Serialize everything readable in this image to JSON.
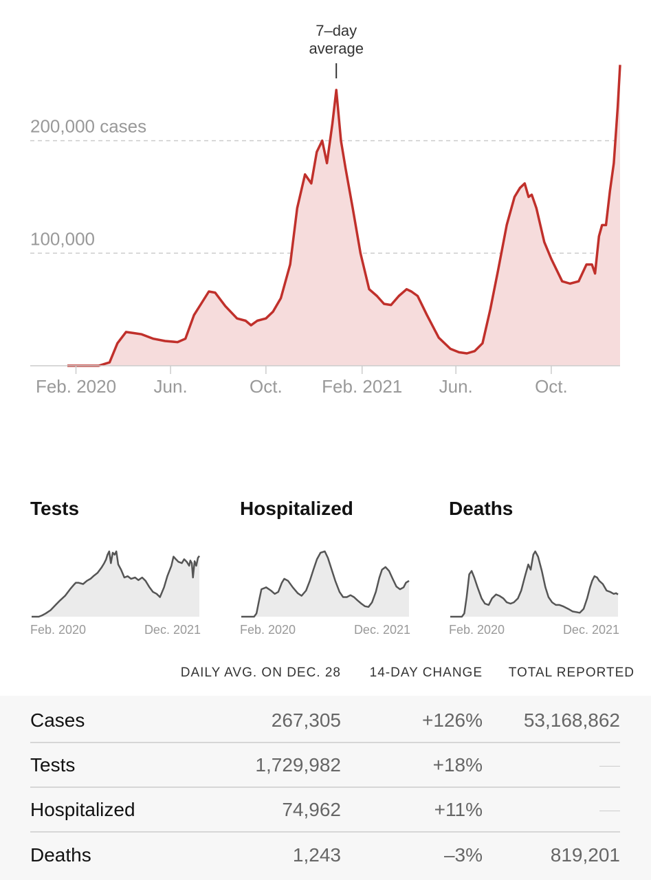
{
  "colors": {
    "main_line": "#c0302b",
    "main_fill": "#f6dcdc",
    "mini_line": "#555555",
    "mini_fill": "#ebebeb"
  },
  "chart_data": [
    {
      "type": "area",
      "annotation": "7–day average",
      "annotation_lines": [
        "7–day",
        "average"
      ],
      "y_tick_labels": [
        "200,000 cases",
        "100,000"
      ],
      "y_ticks": [
        200000,
        100000
      ],
      "ylim": [
        0,
        270000
      ],
      "x_tick_labels": [
        "Feb. 2020",
        "Jun.",
        "Oct.",
        "Feb. 2021",
        "Jun.",
        "Oct."
      ],
      "x_ticks": [
        "2020-02-01",
        "2020-06-01",
        "2020-10-01",
        "2021-02-01",
        "2021-06-01",
        "2021-10-01"
      ],
      "xlim": [
        "2020-01-21",
        "2021-12-28"
      ],
      "grid": true,
      "series": [
        {
          "x": [
            "2020-01-21",
            "2020-02-15",
            "2020-03-01",
            "2020-03-15",
            "2020-03-25",
            "2020-04-05",
            "2020-04-15",
            "2020-04-25",
            "2020-05-10",
            "2020-05-25",
            "2020-06-10",
            "2020-06-20",
            "2020-07-01",
            "2020-07-10",
            "2020-07-20",
            "2020-07-28",
            "2020-08-10",
            "2020-08-25",
            "2020-09-05",
            "2020-09-12",
            "2020-09-20",
            "2020-10-01",
            "2020-10-10",
            "2020-10-20",
            "2020-11-01",
            "2020-11-10",
            "2020-11-20",
            "2020-11-28",
            "2020-12-05",
            "2020-12-12",
            "2020-12-18",
            "2020-12-25",
            "2020-12-30",
            "2021-01-05",
            "2021-01-11",
            "2021-01-20",
            "2021-01-30",
            "2021-02-10",
            "2021-02-20",
            "2021-03-01",
            "2021-03-10",
            "2021-03-20",
            "2021-03-30",
            "2021-04-05",
            "2021-04-13",
            "2021-04-25",
            "2021-05-10",
            "2021-05-25",
            "2021-06-05",
            "2021-06-15",
            "2021-06-25",
            "2021-07-05",
            "2021-07-15",
            "2021-07-25",
            "2021-08-05",
            "2021-08-15",
            "2021-08-22",
            "2021-08-28",
            "2021-09-02",
            "2021-09-06",
            "2021-09-12",
            "2021-09-22",
            "2021-10-01",
            "2021-10-15",
            "2021-10-25",
            "2021-11-05",
            "2021-11-15",
            "2021-11-22",
            "2021-11-26",
            "2021-12-01",
            "2021-12-05",
            "2021-12-10",
            "2021-12-15",
            "2021-12-20",
            "2021-12-25",
            "2021-12-28"
          ],
          "y": [
            0,
            0,
            0,
            3000,
            20000,
            30000,
            29000,
            28000,
            24000,
            22000,
            21000,
            24000,
            45000,
            55000,
            66000,
            65000,
            53000,
            42000,
            40000,
            36000,
            40000,
            42000,
            48000,
            60000,
            90000,
            140000,
            170000,
            162000,
            190000,
            200000,
            180000,
            215000,
            245000,
            200000,
            175000,
            140000,
            100000,
            68000,
            62000,
            55000,
            54000,
            62000,
            68000,
            66000,
            62000,
            45000,
            25000,
            15000,
            12000,
            11000,
            13000,
            20000,
            50000,
            85000,
            125000,
            150000,
            158000,
            162000,
            150000,
            152000,
            140000,
            110000,
            95000,
            75000,
            73000,
            75000,
            90000,
            90000,
            82000,
            115000,
            125000,
            125000,
            155000,
            180000,
            230000,
            267305
          ]
        }
      ]
    },
    {
      "type": "area",
      "title": "Tests",
      "x_tick_labels": [
        "Feb. 2020",
        "Dec. 2021"
      ],
      "series": [
        {
          "x": [
            "2020-01-21",
            "2020-02-20",
            "2020-03-05",
            "2020-03-20",
            "2020-04-10",
            "2020-05-01",
            "2020-05-20",
            "2020-06-10",
            "2020-07-01",
            "2020-07-15",
            "2020-07-25",
            "2020-08-05",
            "2020-08-25",
            "2020-09-10",
            "2020-09-25",
            "2020-10-10",
            "2020-10-25",
            "2020-11-10",
            "2020-11-22",
            "2020-11-30",
            "2020-12-06",
            "2020-12-13",
            "2020-12-20",
            "2020-12-28",
            "2021-01-05",
            "2021-01-12",
            "2021-01-20",
            "2021-02-01",
            "2021-02-15",
            "2021-03-01",
            "2021-03-15",
            "2021-04-01",
            "2021-04-15",
            "2021-05-01",
            "2021-05-15",
            "2021-06-01",
            "2021-06-15",
            "2021-07-01",
            "2021-07-15",
            "2021-08-01",
            "2021-08-15",
            "2021-09-01",
            "2021-09-10",
            "2021-09-20",
            "2021-10-01",
            "2021-10-15",
            "2021-10-25",
            "2021-11-05",
            "2021-11-15",
            "2021-11-20",
            "2021-11-26",
            "2021-12-01",
            "2021-12-08",
            "2021-12-15",
            "2021-12-22",
            "2021-12-28"
          ],
          "y": [
            0,
            0,
            0.02,
            0.05,
            0.1,
            0.18,
            0.25,
            0.32,
            0.42,
            0.48,
            0.52,
            0.52,
            0.5,
            0.55,
            0.58,
            0.63,
            0.67,
            0.75,
            0.82,
            0.88,
            0.95,
            1.0,
            0.82,
            0.98,
            0.95,
            1.0,
            0.8,
            0.72,
            0.6,
            0.62,
            0.58,
            0.6,
            0.56,
            0.6,
            0.55,
            0.45,
            0.38,
            0.35,
            0.3,
            0.45,
            0.62,
            0.78,
            0.92,
            0.88,
            0.84,
            0.82,
            0.88,
            0.84,
            0.78,
            0.86,
            0.82,
            0.6,
            0.85,
            0.78,
            0.9,
            0.93
          ]
        }
      ]
    },
    {
      "type": "area",
      "title": "Hospitalized",
      "x_tick_labels": [
        "Feb. 2020",
        "Dec. 2021"
      ],
      "series": [
        {
          "x": [
            "2020-01-21",
            "2020-03-15",
            "2020-03-25",
            "2020-04-05",
            "2020-04-15",
            "2020-05-05",
            "2020-05-25",
            "2020-06-10",
            "2020-06-25",
            "2020-07-10",
            "2020-07-20",
            "2020-08-05",
            "2020-08-25",
            "2020-09-15",
            "2020-10-01",
            "2020-10-20",
            "2020-11-05",
            "2020-11-20",
            "2020-12-05",
            "2020-12-20",
            "2021-01-07",
            "2021-01-20",
            "2021-02-05",
            "2021-02-20",
            "2021-03-10",
            "2021-03-25",
            "2021-04-10",
            "2021-04-25",
            "2021-05-10",
            "2021-05-25",
            "2021-06-10",
            "2021-06-25",
            "2021-07-10",
            "2021-07-25",
            "2021-08-10",
            "2021-08-25",
            "2021-09-05",
            "2021-09-20",
            "2021-10-05",
            "2021-10-20",
            "2021-11-05",
            "2021-11-20",
            "2021-12-05",
            "2021-12-15",
            "2021-12-28"
          ],
          "y": [
            0,
            0,
            0.05,
            0.25,
            0.42,
            0.45,
            0.4,
            0.35,
            0.38,
            0.52,
            0.58,
            0.55,
            0.45,
            0.36,
            0.32,
            0.4,
            0.55,
            0.72,
            0.88,
            0.98,
            1.0,
            0.9,
            0.72,
            0.55,
            0.38,
            0.3,
            0.3,
            0.33,
            0.3,
            0.25,
            0.2,
            0.16,
            0.15,
            0.22,
            0.38,
            0.6,
            0.72,
            0.76,
            0.7,
            0.58,
            0.46,
            0.42,
            0.45,
            0.52,
            0.55
          ]
        }
      ]
    },
    {
      "type": "area",
      "title": "Deaths",
      "x_tick_labels": [
        "Feb. 2020",
        "Dec. 2021"
      ],
      "series": [
        {
          "x": [
            "2020-01-21",
            "2020-03-10",
            "2020-03-20",
            "2020-03-30",
            "2020-04-10",
            "2020-04-20",
            "2020-05-01",
            "2020-05-15",
            "2020-06-01",
            "2020-06-15",
            "2020-07-01",
            "2020-07-15",
            "2020-08-01",
            "2020-08-15",
            "2020-09-01",
            "2020-09-15",
            "2020-10-01",
            "2020-10-15",
            "2020-11-01",
            "2020-11-15",
            "2020-12-01",
            "2020-12-15",
            "2020-12-25",
            "2021-01-05",
            "2021-01-13",
            "2021-01-25",
            "2021-02-10",
            "2021-02-25",
            "2021-03-10",
            "2021-03-25",
            "2021-04-10",
            "2021-04-25",
            "2021-05-10",
            "2021-06-01",
            "2021-06-20",
            "2021-07-05",
            "2021-07-20",
            "2021-08-05",
            "2021-08-20",
            "2021-09-01",
            "2021-09-10",
            "2021-09-20",
            "2021-10-01",
            "2021-10-10",
            "2021-10-25",
            "2021-11-10",
            "2021-11-25",
            "2021-12-10",
            "2021-12-20",
            "2021-12-28"
          ],
          "y": [
            0,
            0,
            0.05,
            0.3,
            0.65,
            0.7,
            0.6,
            0.45,
            0.28,
            0.2,
            0.18,
            0.28,
            0.34,
            0.32,
            0.28,
            0.22,
            0.2,
            0.22,
            0.28,
            0.4,
            0.62,
            0.8,
            0.72,
            0.95,
            1.0,
            0.92,
            0.7,
            0.45,
            0.3,
            0.22,
            0.18,
            0.18,
            0.16,
            0.12,
            0.08,
            0.07,
            0.06,
            0.12,
            0.28,
            0.45,
            0.55,
            0.62,
            0.6,
            0.55,
            0.5,
            0.4,
            0.38,
            0.35,
            0.36,
            0.34
          ]
        }
      ]
    }
  ],
  "table": {
    "headers": [
      "DAILY AVG. ON DEC. 28",
      "14-DAY CHANGE",
      "TOTAL REPORTED"
    ],
    "rows": [
      {
        "label": "Cases",
        "daily": "267,305",
        "change": "+126%",
        "total": "53,168,862"
      },
      {
        "label": "Tests",
        "daily": "1,729,982",
        "change": "+18%",
        "total": ""
      },
      {
        "label": "Hospitalized",
        "daily": "74,962",
        "change": "+11%",
        "total": ""
      },
      {
        "label": "Deaths",
        "daily": "1,243",
        "change": "–3%",
        "total": "819,201"
      }
    ]
  }
}
